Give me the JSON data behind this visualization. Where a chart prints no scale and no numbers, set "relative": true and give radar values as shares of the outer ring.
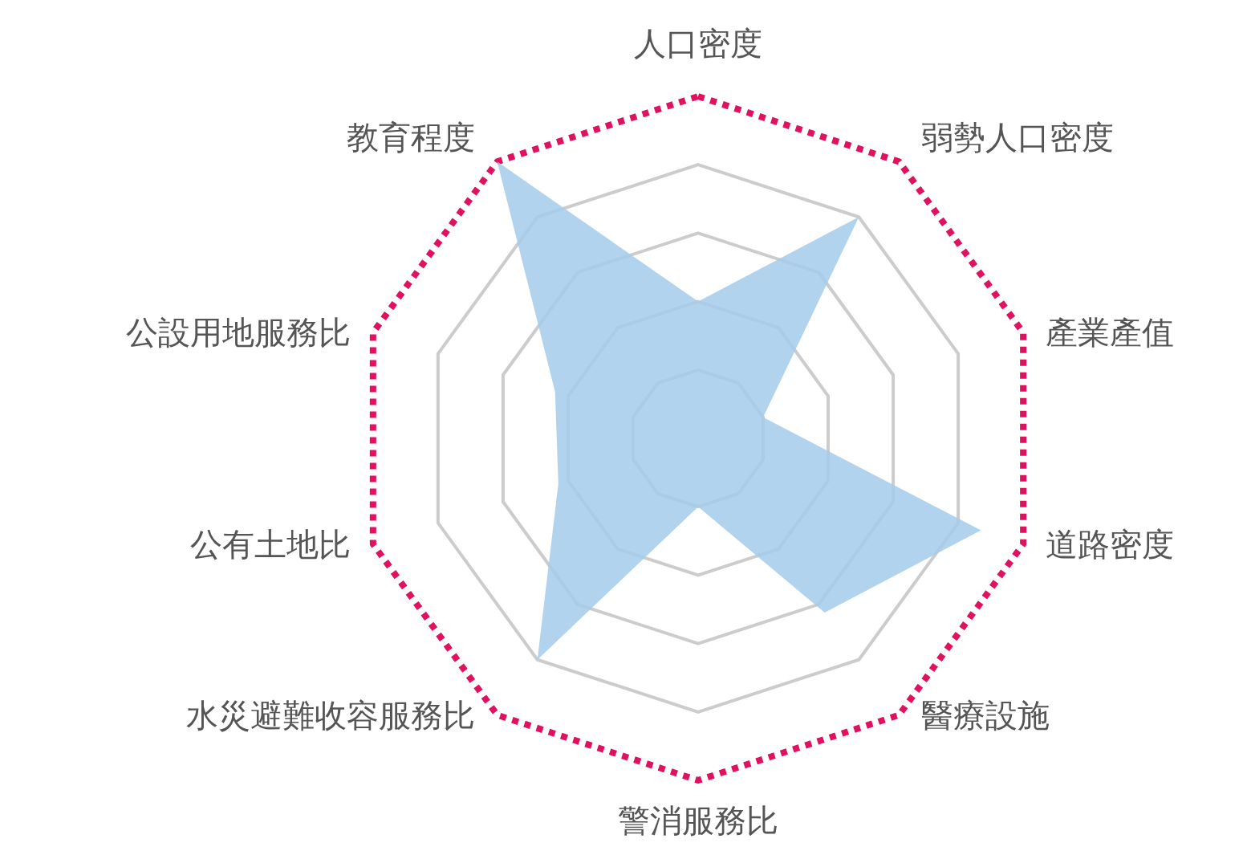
{
  "chart_data": {
    "type": "radar",
    "relative": true,
    "grid": true,
    "categories": [
      "人口密度",
      "弱勢人口密度",
      "產業產值",
      "道路密度",
      "醫療設施",
      "警消服務比",
      "水災避難收容服務比",
      "公有土地比",
      "公設用地服務比",
      "教育程度"
    ],
    "series": [
      {
        "color": "#a3cbea",
        "values": [
          0.4,
          0.8,
          0.2,
          0.87,
          0.63,
          0.2,
          0.8,
          0.43,
          0.44,
          1.0
        ]
      }
    ]
  }
}
